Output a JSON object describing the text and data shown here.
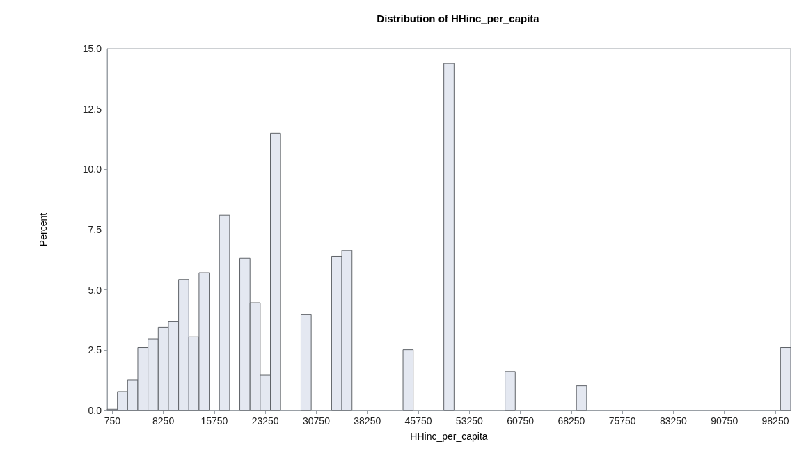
{
  "chart_data": {
    "type": "histogram",
    "title": "Distribution of HHinc_per_capita",
    "xlabel": "HHinc_per_capita",
    "ylabel": "Percent",
    "color": "#e4e8f1",
    "bins": [
      0,
      1500,
      3000,
      4500,
      6000,
      7500,
      9000,
      10500,
      12000,
      13500,
      15000,
      16500,
      18000,
      19500,
      21000,
      22500,
      24000,
      25500,
      27000,
      28500,
      30000,
      31500,
      33000,
      34500,
      36000,
      37500,
      39000,
      40500,
      42000,
      43500,
      45000,
      46500,
      48000,
      49500,
      51000,
      52500,
      54000,
      55500,
      57000,
      58500,
      60000,
      61500,
      63000,
      64500,
      66000,
      67500,
      69000,
      70500,
      72000,
      73500,
      75000,
      76500,
      78000,
      79500,
      81000,
      82500,
      84000,
      85500,
      87000,
      88500,
      90000,
      91500,
      93000,
      94500,
      96000,
      97500,
      99000,
      100500
    ],
    "values": [
      0.05,
      0.78,
      1.27,
      2.61,
      2.97,
      3.45,
      3.68,
      5.43,
      3.05,
      5.71,
      0,
      8.1,
      0,
      6.31,
      4.47,
      1.47,
      11.5,
      0,
      0,
      3.97,
      0,
      0,
      6.39,
      6.63,
      0,
      0,
      0,
      0,
      0,
      2.52,
      0,
      0,
      0,
      14.39,
      0,
      0,
      0,
      0,
      0,
      1.62,
      0,
      0,
      0,
      0,
      0,
      0,
      1.02,
      0,
      0,
      0,
      0,
      0,
      0,
      0,
      0,
      0,
      0,
      0,
      0,
      0,
      0,
      0,
      0,
      0,
      0,
      0,
      2.61
    ],
    "xlim": [
      0,
      100500
    ],
    "xticks": [
      750,
      8250,
      15750,
      23250,
      30750,
      38250,
      45750,
      53250,
      60750,
      68250,
      75750,
      83250,
      90750,
      98250
    ],
    "ylim": [
      0,
      15
    ],
    "yticks": [
      {
        "value": 0,
        "label": "0.0"
      },
      2.5,
      {
        "value": 5,
        "label": "5.0"
      },
      7.5,
      {
        "value": 10,
        "label": "10.0"
      },
      12.5,
      {
        "value": 15,
        "label": "15.0"
      }
    ],
    "grid": false
  }
}
